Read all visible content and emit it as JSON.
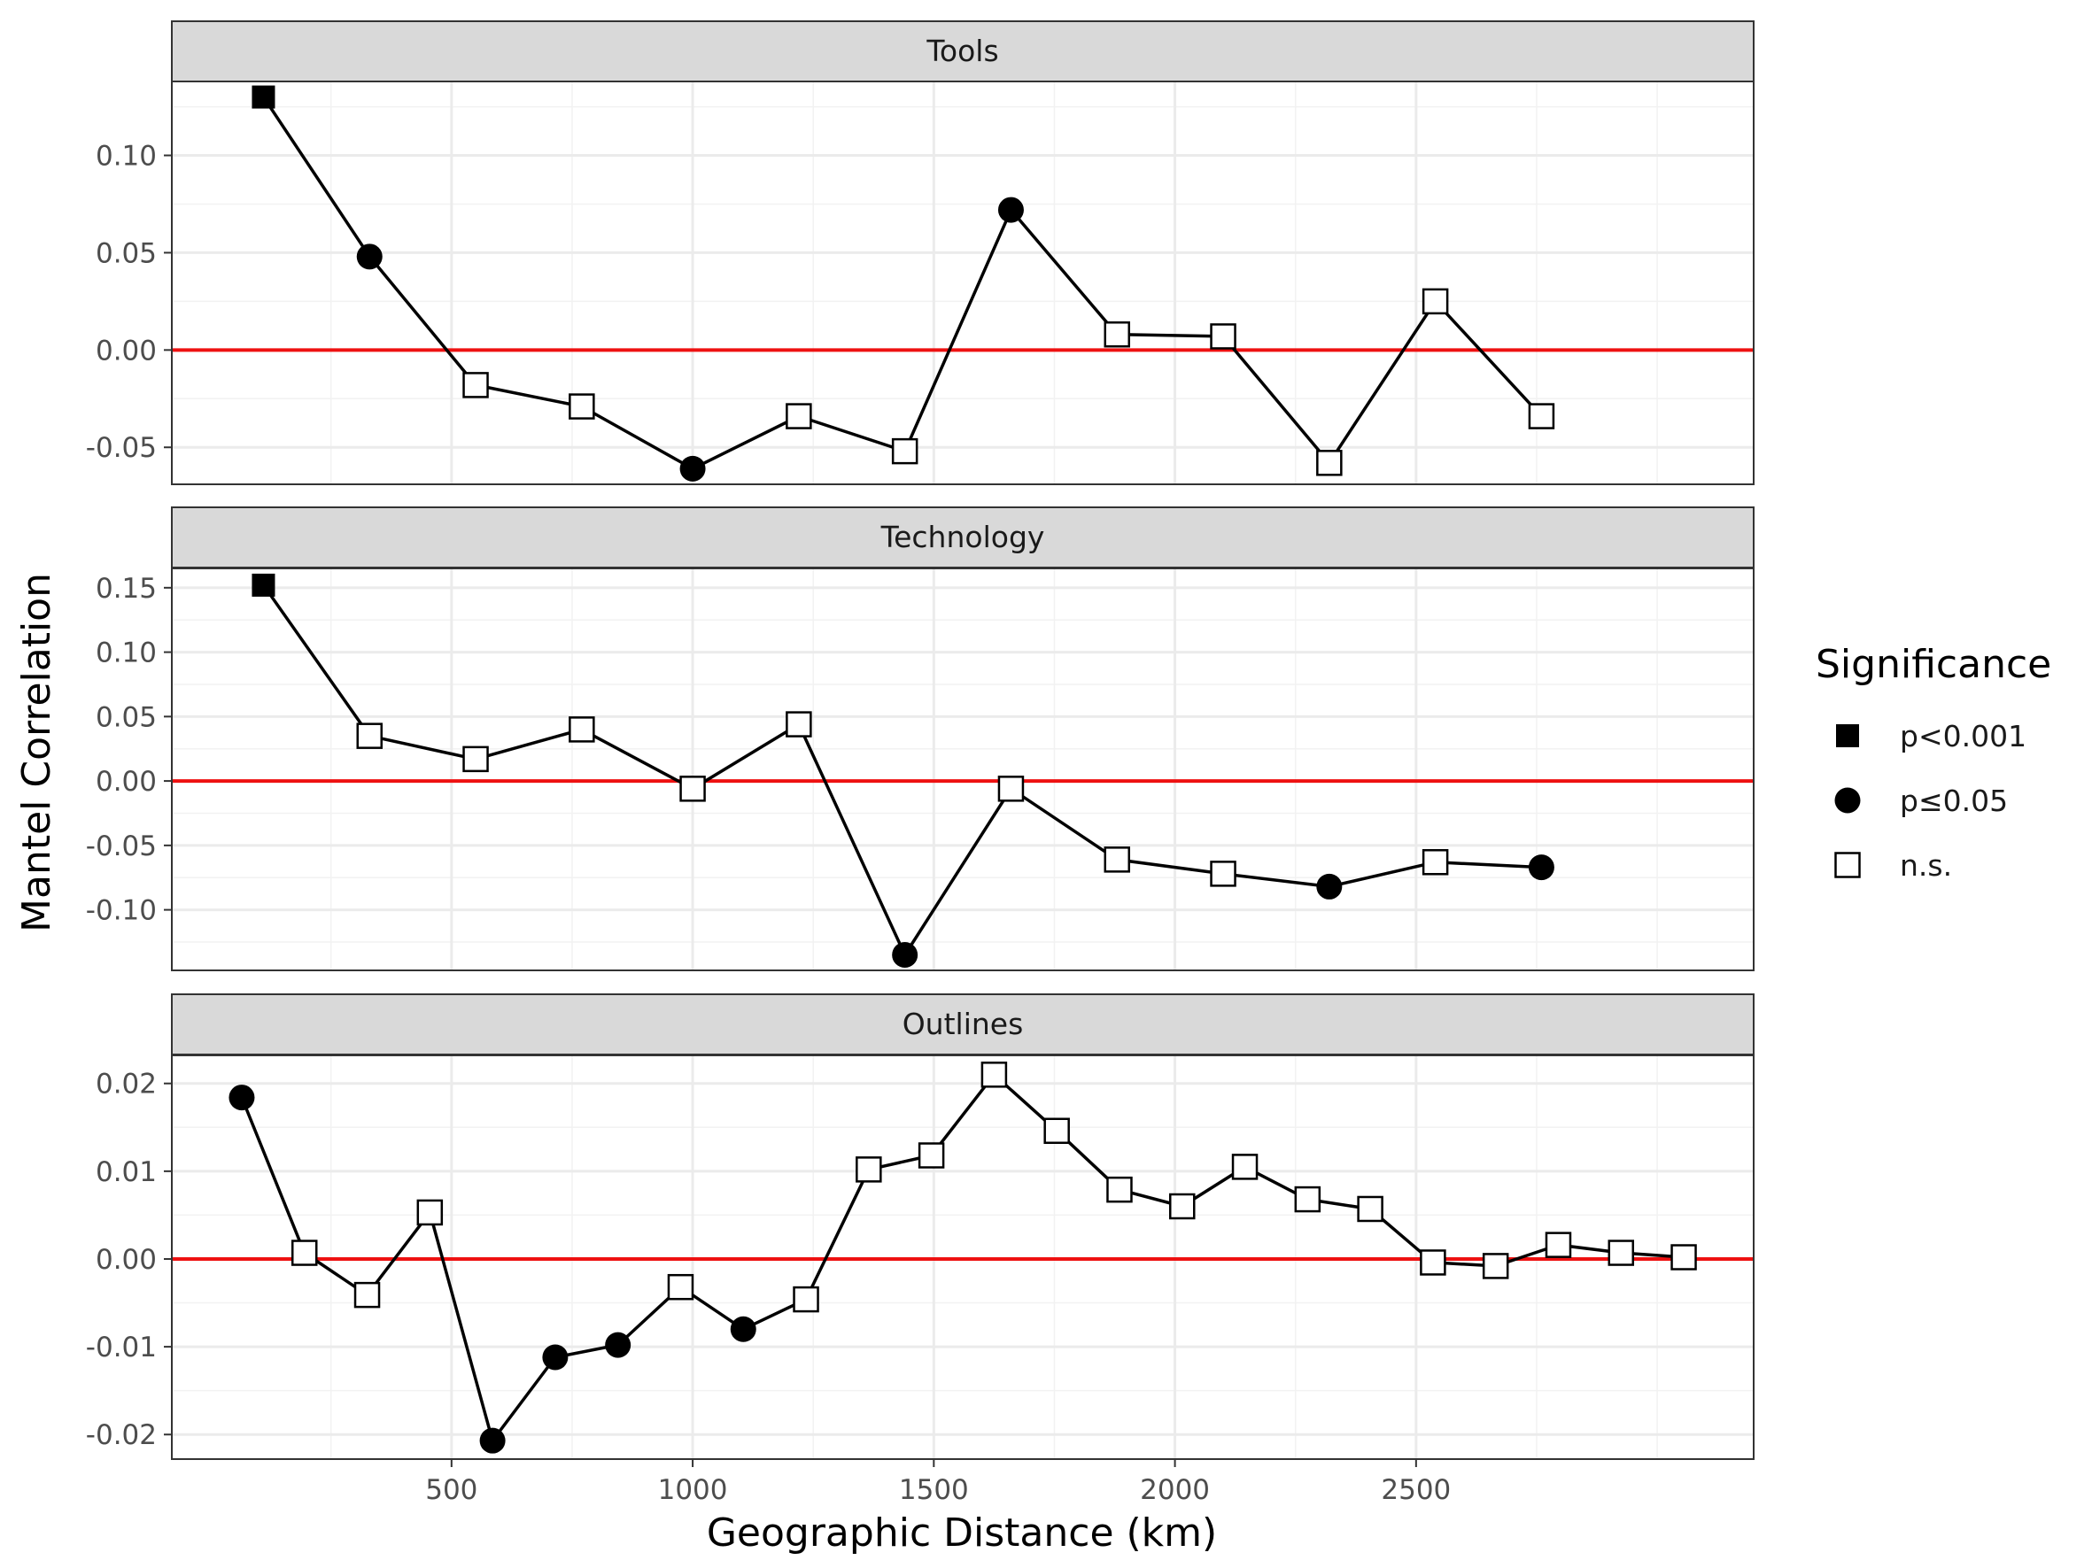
{
  "chart_data": {
    "type": "line",
    "xlabel": "Geographic Distance (km)",
    "ylabel": "Mantel Correlation",
    "xlim": [
      -80,
      3200
    ],
    "x_ticks": [
      500,
      1000,
      1500,
      2000,
      2500
    ],
    "x_tick_labels": [
      "500",
      "1000",
      "1500",
      "2000",
      "2500"
    ],
    "grid": true,
    "reference_line": {
      "y": 0,
      "color": "#ee1111"
    },
    "legend": {
      "title": "Significance",
      "placement": "right",
      "entries": [
        {
          "label": "p<0.001",
          "shape": "filled-square"
        },
        {
          "label": "p≤0.05",
          "shape": "filled-circle"
        },
        {
          "label": "n.s.",
          "shape": "open-square"
        }
      ]
    },
    "facets": [
      {
        "name": "Tools",
        "ylim": [
          -0.069,
          0.138
        ],
        "y_ticks": [
          -0.05,
          0,
          0.05,
          0.1
        ],
        "y_tick_labels": [
          "-0.05",
          "0.00",
          "0.05",
          "0.10"
        ],
        "points": [
          {
            "x": 110,
            "y": 0.13,
            "sig": "p<0.001"
          },
          {
            "x": 330,
            "y": 0.048,
            "sig": "p≤0.05"
          },
          {
            "x": 550,
            "y": -0.018,
            "sig": "n.s."
          },
          {
            "x": 770,
            "y": -0.029,
            "sig": "n.s."
          },
          {
            "x": 1000,
            "y": -0.061,
            "sig": "p≤0.05"
          },
          {
            "x": 1220,
            "y": -0.034,
            "sig": "n.s."
          },
          {
            "x": 1440,
            "y": -0.052,
            "sig": "n.s."
          },
          {
            "x": 1660,
            "y": 0.072,
            "sig": "p≤0.05"
          },
          {
            "x": 1880,
            "y": 0.008,
            "sig": "n.s."
          },
          {
            "x": 2100,
            "y": 0.007,
            "sig": "n.s."
          },
          {
            "x": 2320,
            "y": -0.058,
            "sig": "n.s."
          },
          {
            "x": 2540,
            "y": 0.025,
            "sig": "n.s."
          },
          {
            "x": 2760,
            "y": -0.034,
            "sig": "n.s."
          }
        ]
      },
      {
        "name": "Technology",
        "ylim": [
          -0.147,
          0.165
        ],
        "y_ticks": [
          -0.1,
          -0.05,
          0,
          0.05,
          0.1,
          0.15
        ],
        "y_tick_labels": [
          "-0.10",
          "-0.05",
          "0.00",
          "0.05",
          "0.10",
          "0.15"
        ],
        "points": [
          {
            "x": 110,
            "y": 0.152,
            "sig": "p<0.001"
          },
          {
            "x": 330,
            "y": 0.035,
            "sig": "n.s."
          },
          {
            "x": 550,
            "y": 0.017,
            "sig": "n.s."
          },
          {
            "x": 770,
            "y": 0.04,
            "sig": "n.s."
          },
          {
            "x": 1000,
            "y": -0.006,
            "sig": "n.s."
          },
          {
            "x": 1220,
            "y": 0.044,
            "sig": "n.s."
          },
          {
            "x": 1440,
            "y": -0.135,
            "sig": "p≤0.05"
          },
          {
            "x": 1660,
            "y": -0.006,
            "sig": "n.s."
          },
          {
            "x": 1880,
            "y": -0.061,
            "sig": "n.s."
          },
          {
            "x": 2100,
            "y": -0.072,
            "sig": "n.s."
          },
          {
            "x": 2320,
            "y": -0.082,
            "sig": "p≤0.05"
          },
          {
            "x": 2540,
            "y": -0.063,
            "sig": "n.s."
          },
          {
            "x": 2760,
            "y": -0.067,
            "sig": "p≤0.05"
          }
        ]
      },
      {
        "name": "Outlines",
        "ylim": [
          -0.0228,
          0.0232
        ],
        "y_ticks": [
          -0.02,
          -0.01,
          0,
          0.01,
          0.02
        ],
        "y_tick_labels": [
          "-0.02",
          "-0.01",
          "0.00",
          "0.01",
          "0.02"
        ],
        "points": [
          {
            "x": 65,
            "y": 0.0184,
            "sig": "p≤0.05"
          },
          {
            "x": 195,
            "y": 0.0007,
            "sig": "n.s."
          },
          {
            "x": 325,
            "y": -0.0041,
            "sig": "n.s."
          },
          {
            "x": 455,
            "y": 0.0053,
            "sig": "n.s."
          },
          {
            "x": 585,
            "y": -0.0207,
            "sig": "p≤0.05"
          },
          {
            "x": 715,
            "y": -0.0112,
            "sig": "p≤0.05"
          },
          {
            "x": 845,
            "y": -0.0098,
            "sig": "p≤0.05"
          },
          {
            "x": 975,
            "y": -0.0032,
            "sig": "n.s."
          },
          {
            "x": 1105,
            "y": -0.008,
            "sig": "p≤0.05"
          },
          {
            "x": 1235,
            "y": -0.0046,
            "sig": "n.s."
          },
          {
            "x": 1365,
            "y": 0.0102,
            "sig": "n.s."
          },
          {
            "x": 1495,
            "y": 0.0118,
            "sig": "n.s."
          },
          {
            "x": 1625,
            "y": 0.021,
            "sig": "n.s."
          },
          {
            "x": 1755,
            "y": 0.0146,
            "sig": "n.s."
          },
          {
            "x": 1885,
            "y": 0.0079,
            "sig": "n.s."
          },
          {
            "x": 2015,
            "y": 0.006,
            "sig": "n.s."
          },
          {
            "x": 2145,
            "y": 0.0105,
            "sig": "n.s."
          },
          {
            "x": 2275,
            "y": 0.0068,
            "sig": "n.s."
          },
          {
            "x": 2405,
            "y": 0.0057,
            "sig": "n.s."
          },
          {
            "x": 2535,
            "y": -0.0004,
            "sig": "n.s."
          },
          {
            "x": 2665,
            "y": -0.0008,
            "sig": "n.s."
          },
          {
            "x": 2795,
            "y": 0.0016,
            "sig": "n.s."
          },
          {
            "x": 2925,
            "y": 0.0007,
            "sig": "n.s."
          },
          {
            "x": 3055,
            "y": 0.0002,
            "sig": "n.s."
          }
        ]
      }
    ]
  }
}
